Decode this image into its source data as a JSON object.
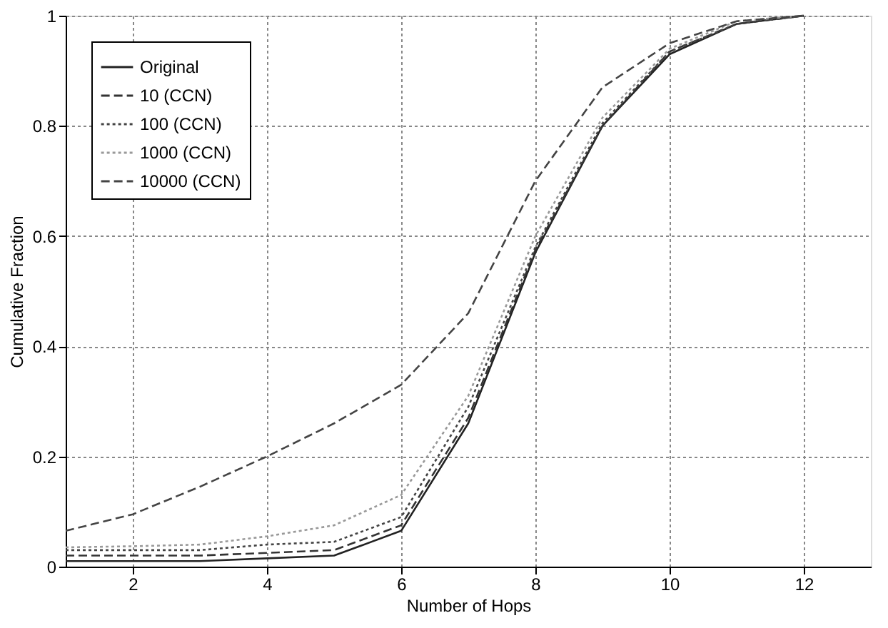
{
  "chart_data": {
    "type": "line",
    "xlabel": "Number of Hops",
    "ylabel": "Cumulative Fraction",
    "x": [
      1,
      2,
      3,
      4,
      5,
      6,
      7,
      8,
      9,
      10,
      11,
      12
    ],
    "xlim": [
      1,
      13
    ],
    "xticks": [
      2,
      4,
      6,
      8,
      10,
      12
    ],
    "ylim": [
      0,
      1
    ],
    "yticks": [
      0,
      0.2,
      0.4,
      0.6,
      0.8,
      1
    ],
    "grid": true,
    "legend": "top left",
    "marker": "none",
    "series": [
      {
        "name": "Original",
        "color": "#222222",
        "line_style": "solid",
        "values": [
          0.01,
          0.01,
          0.01,
          0.015,
          0.02,
          0.065,
          0.26,
          0.57,
          0.8,
          0.93,
          0.985,
          1
        ]
      },
      {
        "name": "10 (CCN)",
        "color": "#333333",
        "line_style": "dashed",
        "values": [
          0.02,
          0.02,
          0.02,
          0.025,
          0.03,
          0.075,
          0.27,
          0.575,
          0.8,
          0.935,
          0.985,
          1
        ]
      },
      {
        "name": "100 (CCN)",
        "color": "#444444",
        "line_style": "dotted",
        "values": [
          0.03,
          0.03,
          0.03,
          0.04,
          0.045,
          0.09,
          0.29,
          0.58,
          0.805,
          0.935,
          0.985,
          1
        ]
      },
      {
        "name": "1000 (CCN)",
        "color": "#999999",
        "line_style": "dotted",
        "values": [
          0.035,
          0.037,
          0.04,
          0.055,
          0.075,
          0.13,
          0.31,
          0.6,
          0.815,
          0.94,
          0.99,
          1
        ]
      },
      {
        "name": "10000 (CCN)",
        "color": "#444444",
        "line_style": "dashed",
        "values": [
          0.065,
          0.095,
          0.145,
          0.2,
          0.26,
          0.33,
          0.46,
          0.7,
          0.87,
          0.95,
          0.99,
          1
        ]
      }
    ]
  }
}
